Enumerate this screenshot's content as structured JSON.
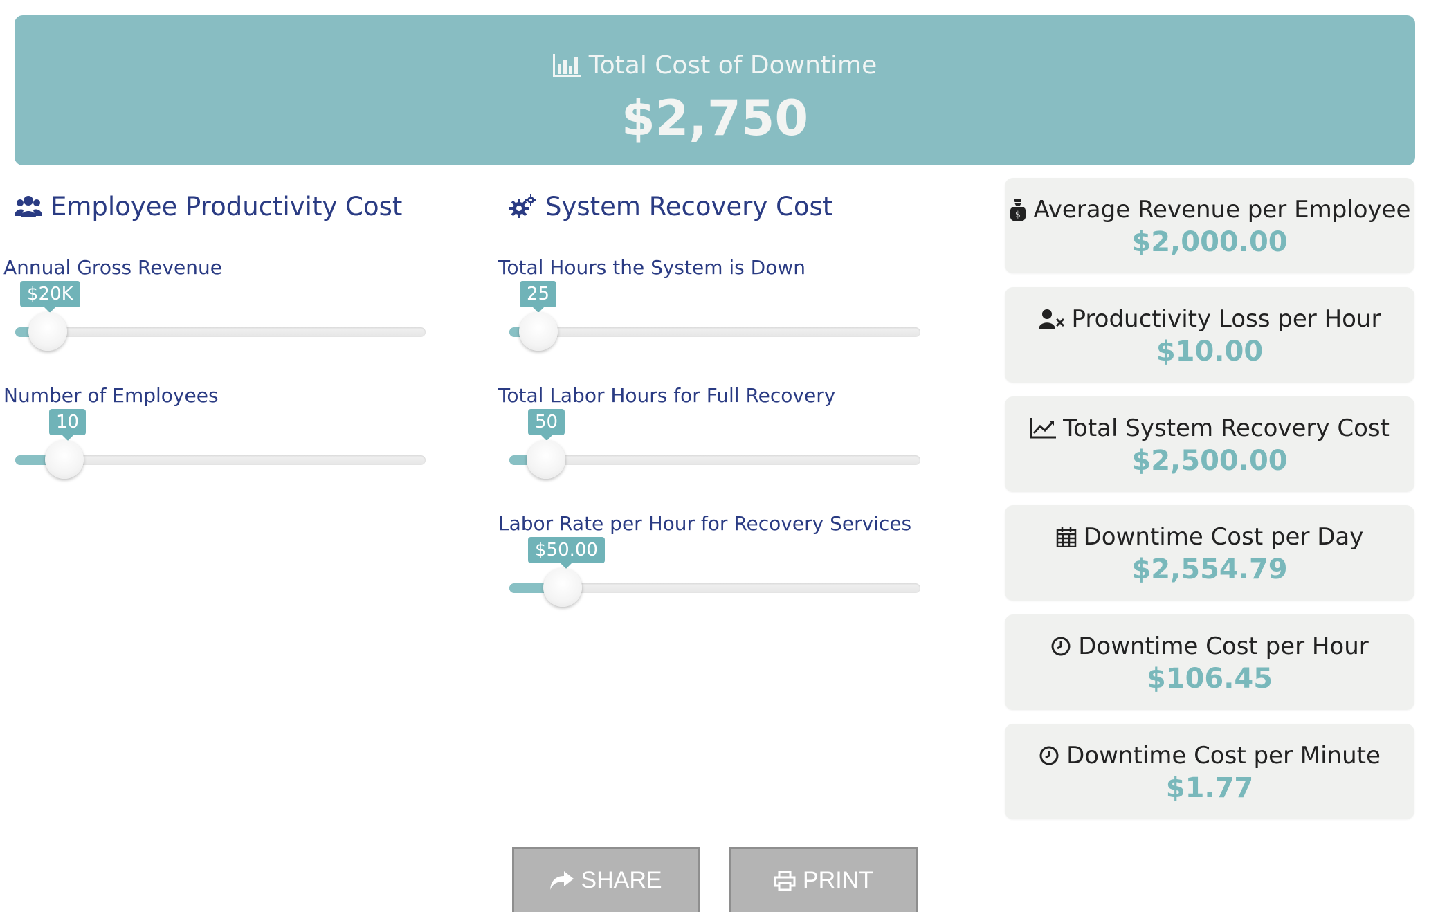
{
  "banner": {
    "title": "Total Cost of Downtime",
    "value": "$2,750",
    "icon": "bar-chart-icon"
  },
  "sections": {
    "employee": {
      "title": "Employee Productivity Cost",
      "icon": "users-icon"
    },
    "recovery": {
      "title": "System Recovery Cost",
      "icon": "cogs-icon"
    }
  },
  "sliders": {
    "annual_gross_revenue": {
      "label": "Annual Gross Revenue",
      "display": "$20K",
      "level": 0.08
    },
    "number_of_employees": {
      "label": "Number of Employees",
      "display": "10",
      "level": 0.12
    },
    "hours_down": {
      "label": "Total Hours the System is Down",
      "display": "25",
      "level": 0.07
    },
    "labor_hours": {
      "label": "Total Labor Hours for Full Recovery",
      "display": "50",
      "level": 0.09
    },
    "labor_rate": {
      "label": "Labor Rate per Hour for Recovery Services",
      "display": "$50.00",
      "level": 0.13
    }
  },
  "cards": [
    {
      "label": "Average Revenue per Employee",
      "value": "$2,000.00",
      "icon": "money-bag-icon"
    },
    {
      "label": "Productivity Loss per Hour",
      "value": "$10.00",
      "icon": "user-times-icon"
    },
    {
      "label": "Total System Recovery Cost",
      "value": "$2,500.00",
      "icon": "line-chart-icon"
    },
    {
      "label": "Downtime Cost per Day",
      "value": "$2,554.79",
      "icon": "calendar-icon"
    },
    {
      "label": "Downtime Cost per Hour",
      "value": "$106.45",
      "icon": "clock-icon"
    },
    {
      "label": "Downtime Cost per Minute",
      "value": "$1.77",
      "icon": "clock-icon"
    }
  ],
  "actions": {
    "share_label": "SHARE",
    "print_label": "PRINT"
  },
  "colors": {
    "banner": "#88bdc2",
    "accent": "#79b8bb",
    "heading": "#2a3b83",
    "card_bg": "#f0f1ef",
    "button": "#b4b4b4"
  }
}
